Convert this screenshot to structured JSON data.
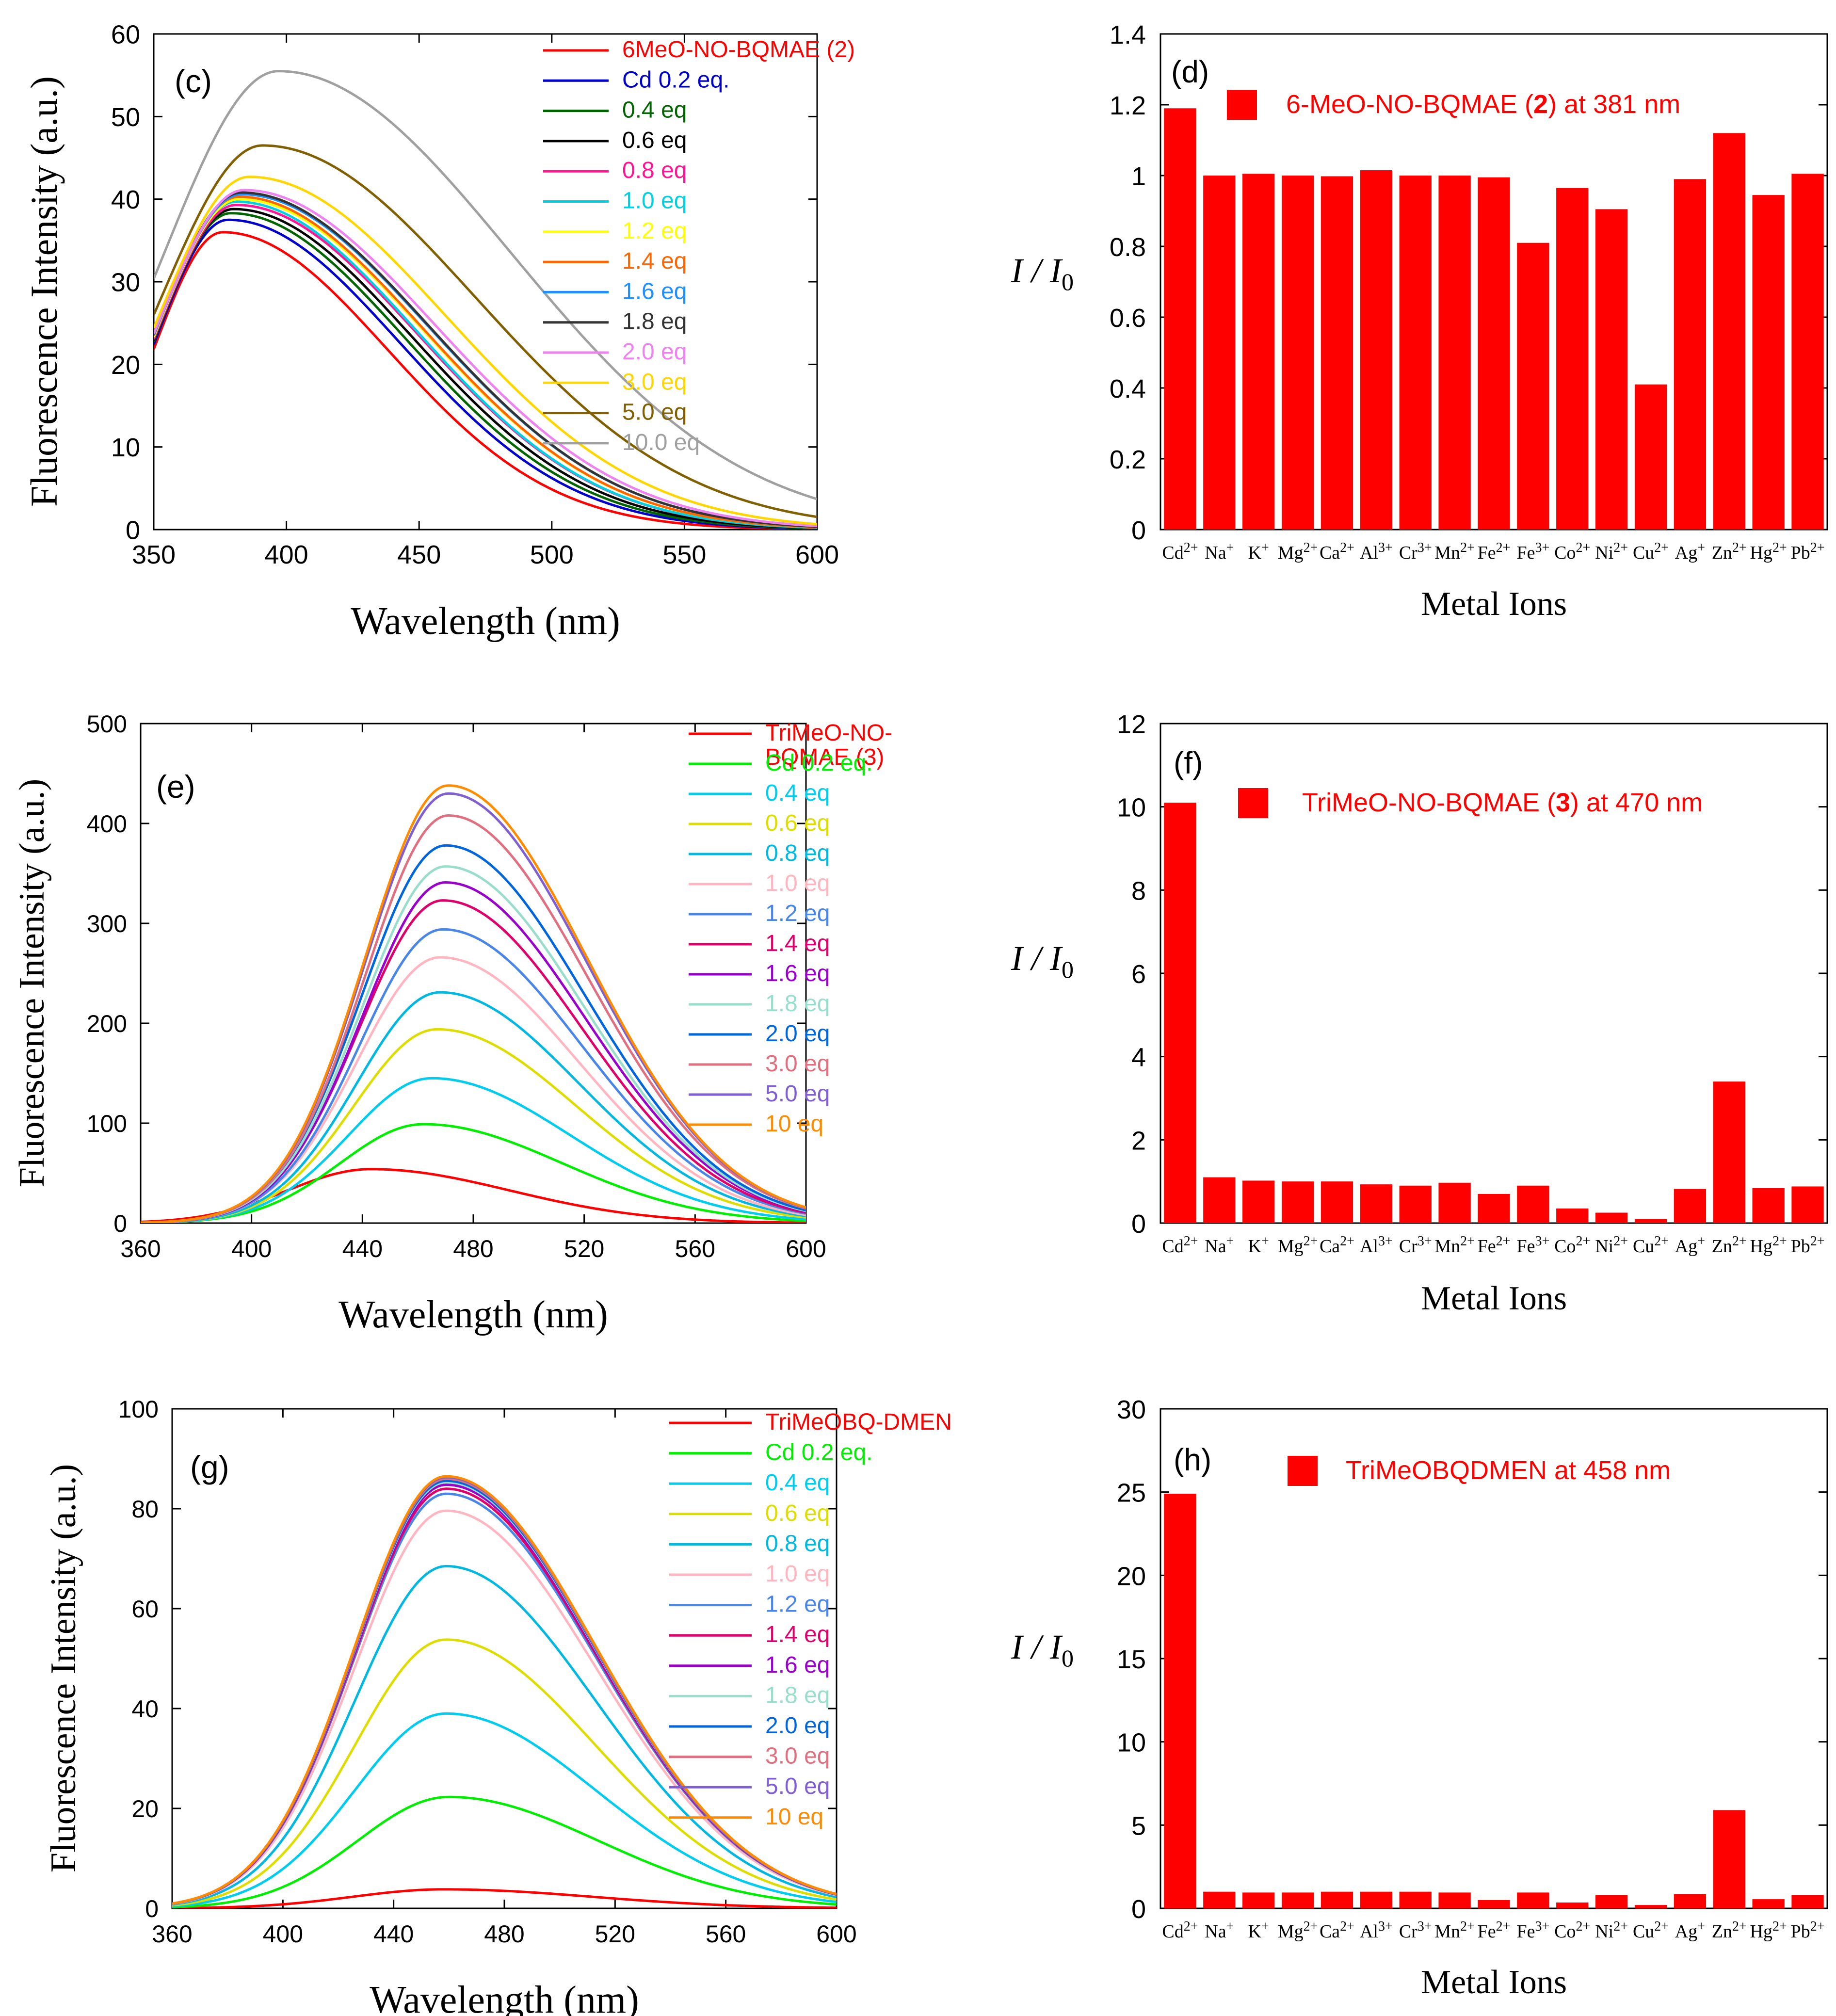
{
  "chart_data": [
    {
      "id": "c",
      "type": "line",
      "panel_label": "(c)",
      "xlabel": "Wavelength (nm)",
      "ylabel": "Fluorescence Intensity (a.u.)",
      "xlim": [
        350,
        600
      ],
      "ylim": [
        0,
        60
      ],
      "xticks": [
        350,
        400,
        450,
        500,
        550,
        600
      ],
      "yticks": [
        0,
        10,
        20,
        30,
        40,
        50,
        60
      ],
      "series": [
        {
          "name": "6MeO-NO-BQMAE (2)",
          "color": "#ff0000",
          "peak_x": 376,
          "peak_y": 36
        },
        {
          "name": "Cd 0.2 eq.",
          "color": "#0000cc",
          "peak_x": 378,
          "peak_y": 37.5
        },
        {
          "name": "0.4 eq",
          "color": "#006400",
          "peak_x": 379,
          "peak_y": 38.3
        },
        {
          "name": "0.6 eq",
          "color": "#000000",
          "peak_x": 380,
          "peak_y": 38.8
        },
        {
          "name": "0.8 eq",
          "color": "#ff1493",
          "peak_x": 381,
          "peak_y": 39.3
        },
        {
          "name": "1.0 eq",
          "color": "#00d0e0",
          "peak_x": 381,
          "peak_y": 39.7
        },
        {
          "name": "1.2 eq",
          "color": "#ffff00",
          "peak_x": 382,
          "peak_y": 40
        },
        {
          "name": "1.4 eq",
          "color": "#ff6600",
          "peak_x": 382,
          "peak_y": 40.3
        },
        {
          "name": "1.6 eq",
          "color": "#1e90ff",
          "peak_x": 383,
          "peak_y": 40.6
        },
        {
          "name": "1.8 eq",
          "color": "#333333",
          "peak_x": 383,
          "peak_y": 40.8
        },
        {
          "name": "2.0 eq",
          "color": "#ee82ee",
          "peak_x": 384,
          "peak_y": 41.1
        },
        {
          "name": "3.0 eq",
          "color": "#ffd700",
          "peak_x": 386,
          "peak_y": 42.7
        },
        {
          "name": "5.0 eq",
          "color": "#806000",
          "peak_x": 391,
          "peak_y": 46.5
        },
        {
          "name": "10.0 eq",
          "color": "#a0a0a0",
          "peak_x": 397,
          "peak_y": 55.5
        }
      ]
    },
    {
      "id": "e",
      "type": "line",
      "panel_label": "(e)",
      "xlabel": "Wavelength (nm)",
      "ylabel": "Fluorescence Intensity (a.u.)",
      "xlim": [
        360,
        600
      ],
      "ylim": [
        0,
        500
      ],
      "xticks": [
        360,
        400,
        440,
        480,
        520,
        560,
        600
      ],
      "yticks": [
        0,
        100,
        200,
        300,
        400,
        500
      ],
      "series": [
        {
          "name": "TriMeO-NO-BQMAE (3)",
          "color": "#ff0000",
          "peak_x": 443,
          "peak_y": 54
        },
        {
          "name": "Cd 0.2 eq.",
          "color": "#00ee00",
          "peak_x": 462,
          "peak_y": 99
        },
        {
          "name": "0.4 eq",
          "color": "#00ccee",
          "peak_x": 465,
          "peak_y": 145
        },
        {
          "name": "0.6 eq",
          "color": "#dddd00",
          "peak_x": 467,
          "peak_y": 194
        },
        {
          "name": "0.8 eq",
          "color": "#00b8e0",
          "peak_x": 468,
          "peak_y": 231
        },
        {
          "name": "1.0 eq",
          "color": "#ffb6c1",
          "peak_x": 468,
          "peak_y": 266
        },
        {
          "name": "1.2 eq",
          "color": "#4a86e8",
          "peak_x": 469,
          "peak_y": 294
        },
        {
          "name": "1.4 eq",
          "color": "#e0006a",
          "peak_x": 469,
          "peak_y": 323
        },
        {
          "name": "1.6 eq",
          "color": "#9900cc",
          "peak_x": 470,
          "peak_y": 341
        },
        {
          "name": "1.8 eq",
          "color": "#99ddcc",
          "peak_x": 470,
          "peak_y": 357
        },
        {
          "name": "2.0 eq",
          "color": "#0066dd",
          "peak_x": 470,
          "peak_y": 378
        },
        {
          "name": "3.0 eq",
          "color": "#e07080",
          "peak_x": 471,
          "peak_y": 408
        },
        {
          "name": "5.0 eq",
          "color": "#8060d0",
          "peak_x": 471,
          "peak_y": 430
        },
        {
          "name": "10 eq",
          "color": "#ff8c00",
          "peak_x": 471,
          "peak_y": 438
        }
      ]
    },
    {
      "id": "g",
      "type": "line",
      "panel_label": "(g)",
      "xlabel": "Wavelength (nm)",
      "ylabel": "Fluorescence Intensity (a.u.)",
      "xlim": [
        360,
        600
      ],
      "ylim": [
        0,
        100
      ],
      "xticks": [
        360,
        400,
        440,
        480,
        520,
        560,
        600
      ],
      "yticks": [
        0,
        20,
        40,
        60,
        80,
        100
      ],
      "series": [
        {
          "name": "TriMeOBQ-DMEN",
          "color": "#ff0000",
          "peak_x": 458,
          "peak_y": 3.8
        },
        {
          "name": "Cd 0.2 eq.",
          "color": "#00ee00",
          "peak_x": 460,
          "peak_y": 22.3
        },
        {
          "name": "0.4 eq",
          "color": "#00ccee",
          "peak_x": 459,
          "peak_y": 39
        },
        {
          "name": "0.6 eq",
          "color": "#dddd00",
          "peak_x": 459,
          "peak_y": 53.8
        },
        {
          "name": "0.8 eq",
          "color": "#00b8e0",
          "peak_x": 459,
          "peak_y": 68.5
        },
        {
          "name": "1.0 eq",
          "color": "#ffb6c1",
          "peak_x": 459,
          "peak_y": 79.6
        },
        {
          "name": "1.2 eq",
          "color": "#4a86e8",
          "peak_x": 459,
          "peak_y": 83
        },
        {
          "name": "1.4 eq",
          "color": "#e0006a",
          "peak_x": 459,
          "peak_y": 84
        },
        {
          "name": "1.6 eq",
          "color": "#9900cc",
          "peak_x": 459,
          "peak_y": 84.8
        },
        {
          "name": "1.8 eq",
          "color": "#99ddcc",
          "peak_x": 459,
          "peak_y": 85.3
        },
        {
          "name": "2.0 eq",
          "color": "#0066dd",
          "peak_x": 459,
          "peak_y": 85.6
        },
        {
          "name": "3.0 eq",
          "color": "#e07080",
          "peak_x": 459,
          "peak_y": 86
        },
        {
          "name": "5.0 eq",
          "color": "#8060d0",
          "peak_x": 459,
          "peak_y": 86.3
        },
        {
          "name": "10 eq",
          "color": "#ff8c00",
          "peak_x": 459,
          "peak_y": 86.5
        }
      ]
    },
    {
      "id": "d",
      "type": "bar",
      "panel_label": "(d)",
      "legend": "6-MeO-NO-BQMAE (2) at 381 nm",
      "xlabel": "Metal Ions",
      "ylabel": "I / I0",
      "ylim": [
        0,
        1.4
      ],
      "yticks": [
        "0",
        "0.2",
        "0.4",
        "0.6",
        "0.8",
        "1",
        "1.2",
        "1.4"
      ],
      "color": "#ff0000",
      "categories": [
        "Cd2+",
        "Na+",
        "K+",
        "Mg2+",
        "Ca2+",
        "Al3+",
        "Cr3+",
        "Mn2+",
        "Fe2+",
        "Fe3+",
        "Co2+",
        "Ni2+",
        "Cu2+",
        "Ag+",
        "Zn2+",
        "Hg2+",
        "Pb2+"
      ],
      "values": [
        1.19,
        1.0,
        1.005,
        1.0,
        0.998,
        1.015,
        1.0,
        1.0,
        0.995,
        0.81,
        0.965,
        0.905,
        0.41,
        0.99,
        1.12,
        0.945,
        1.005
      ]
    },
    {
      "id": "f",
      "type": "bar",
      "panel_label": "(f)",
      "legend": "TriMeO-NO-BQMAE (3) at 470 nm",
      "xlabel": "Metal Ions",
      "ylabel": "I / I0",
      "ylim": [
        0,
        12
      ],
      "yticks": [
        "0",
        "2",
        "4",
        "6",
        "8",
        "10",
        "12"
      ],
      "color": "#ff0000",
      "categories": [
        "Cd2+",
        "Na+",
        "K+",
        "Mg2+",
        "Ca2+",
        "Al3+",
        "Cr3+",
        "Mn2+",
        "Fe2+",
        "Fe3+",
        "Co2+",
        "Ni2+",
        "Cu2+",
        "Ag+",
        "Zn2+",
        "Hg2+",
        "Pb2+"
      ],
      "values": [
        10.1,
        1.1,
        1.02,
        1.0,
        1.0,
        0.93,
        0.9,
        0.97,
        0.7,
        0.9,
        0.35,
        0.25,
        0.1,
        0.82,
        3.4,
        0.84,
        0.88
      ]
    },
    {
      "id": "h",
      "type": "bar",
      "panel_label": "(h)",
      "legend": "TriMeOBQDMEN at 458 nm",
      "xlabel": "Metal Ions",
      "ylabel": "I / I0",
      "ylim": [
        0,
        30
      ],
      "yticks": [
        "0",
        "5",
        "10",
        "15",
        "20",
        "25",
        "30"
      ],
      "color": "#ff0000",
      "categories": [
        "Cd2+",
        "Na+",
        "K+",
        "Mg2+",
        "Ca2+",
        "Al3+",
        "Cr3+",
        "Mn2+",
        "Fe2+",
        "Fe3+",
        "Co2+",
        "Ni2+",
        "Cu2+",
        "Ag+",
        "Zn2+",
        "Hg2+",
        "Pb2+"
      ],
      "values": [
        24.9,
        1.0,
        0.95,
        0.95,
        1.0,
        1.0,
        1.0,
        0.95,
        0.5,
        0.95,
        0.35,
        0.8,
        0.2,
        0.85,
        5.9,
        0.55,
        0.8
      ]
    }
  ]
}
